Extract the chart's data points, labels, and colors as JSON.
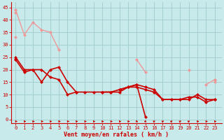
{
  "xlabel": "Vent moyen/en rafales ( km/h )",
  "background_color": "#c8eaea",
  "grid_color": "#a0cccc",
  "x_ticks": [
    0,
    1,
    2,
    3,
    4,
    5,
    6,
    7,
    8,
    9,
    10,
    11,
    12,
    13,
    14,
    15,
    16,
    17,
    18,
    19,
    20,
    21,
    22,
    23
  ],
  "y_ticks": [
    0,
    5,
    10,
    15,
    20,
    25,
    30,
    35,
    40,
    45
  ],
  "ylim": [
    -1.5,
    47
  ],
  "xlim": [
    -0.5,
    23.8
  ],
  "lines_pink": [
    {
      "x": [
        0,
        1,
        2,
        3,
        4,
        5,
        6,
        7,
        8,
        9,
        10,
        11,
        12,
        13,
        14,
        15,
        16,
        17,
        18,
        19,
        20,
        21,
        22,
        23
      ],
      "y": [
        44,
        null,
        null,
        null,
        null,
        null,
        null,
        null,
        null,
        null,
        null,
        null,
        null,
        null,
        null,
        null,
        null,
        null,
        null,
        null,
        null,
        null,
        null,
        16
      ]
    },
    {
      "x": [
        0,
        1,
        2,
        3,
        4,
        5,
        6,
        7,
        8,
        9,
        10,
        11,
        12,
        13,
        14,
        15,
        16,
        17,
        18,
        19,
        20,
        21,
        22,
        23
      ],
      "y": [
        43,
        null,
        null,
        null,
        null,
        null,
        null,
        null,
        null,
        null,
        null,
        null,
        null,
        null,
        null,
        null,
        null,
        null,
        null,
        null,
        null,
        null,
        null,
        15
      ]
    },
    {
      "x": [
        0,
        1,
        2,
        3,
        4,
        5,
        6,
        7,
        8,
        9,
        10,
        11,
        12,
        13,
        14,
        15,
        16,
        17,
        18,
        19,
        20,
        21,
        22,
        23
      ],
      "y": [
        44,
        34,
        39,
        36,
        35,
        28,
        null,
        null,
        null,
        null,
        null,
        null,
        null,
        null,
        24,
        19,
        null,
        null,
        null,
        null,
        20,
        null,
        14,
        16
      ]
    },
    {
      "x": [
        0,
        1,
        2,
        3,
        4,
        5,
        6,
        7,
        8,
        9,
        10,
        11,
        12,
        13,
        14,
        15,
        16,
        17,
        18,
        19,
        20,
        21,
        22,
        23
      ],
      "y": [
        33,
        null,
        null,
        null,
        null,
        null,
        null,
        null,
        null,
        null,
        null,
        null,
        null,
        null,
        null,
        null,
        null,
        null,
        null,
        null,
        null,
        null,
        null,
        null
      ]
    }
  ],
  "lines_red": [
    {
      "x": [
        0,
        1,
        2,
        3,
        4,
        5,
        6,
        7,
        8,
        9,
        10,
        11,
        12,
        13,
        14,
        15,
        16,
        17,
        18,
        19,
        20,
        21,
        22,
        23
      ],
      "y": [
        25,
        20,
        20,
        20,
        17,
        16,
        10,
        11,
        11,
        11,
        11,
        11,
        12,
        13,
        13,
        12,
        11,
        8,
        8,
        8,
        8,
        10,
        8,
        8
      ]
    },
    {
      "x": [
        0,
        1,
        2,
        3,
        4,
        5,
        6,
        7,
        8,
        9,
        10,
        11,
        12,
        13,
        14,
        15,
        16,
        17,
        18,
        19,
        20,
        21,
        22,
        23
      ],
      "y": [
        24,
        19,
        20,
        15,
        20,
        21,
        15,
        11,
        null,
        null,
        11,
        11,
        11,
        13,
        14,
        13,
        12,
        8,
        8,
        8,
        9,
        9,
        7,
        8
      ]
    },
    {
      "x": [
        0,
        1,
        2,
        3,
        4,
        5,
        6,
        7,
        8,
        9,
        10,
        11,
        12,
        13,
        14,
        15,
        16,
        17,
        18,
        19,
        20,
        21,
        22,
        23
      ],
      "y": [
        24,
        null,
        null,
        null,
        null,
        null,
        null,
        null,
        null,
        null,
        null,
        null,
        null,
        null,
        null,
        null,
        null,
        null,
        null,
        null,
        null,
        null,
        null,
        8
      ]
    },
    {
      "x": [
        0,
        1,
        2,
        3,
        4,
        5,
        6,
        7,
        8,
        9,
        10,
        11,
        12,
        13,
        14,
        15,
        16,
        17,
        18,
        19,
        20,
        21,
        22,
        23
      ],
      "y": [
        null,
        null,
        null,
        null,
        null,
        null,
        null,
        null,
        null,
        null,
        null,
        null,
        12,
        13,
        14,
        1,
        null,
        null,
        null,
        null,
        null,
        null,
        null,
        null
      ]
    }
  ],
  "pink_color": "#ee9999",
  "red_color": "#cc0000",
  "marker": "D",
  "marker_size": 2.5,
  "pink_lw": 1.0,
  "red_lw": 1.2,
  "arrow_symbols": [
    "r",
    "r",
    "r",
    "r",
    "r",
    "r",
    "r",
    "r",
    "r",
    "r",
    "r",
    "r",
    "r",
    "r",
    "d",
    "d",
    "u",
    "u",
    "u",
    "u",
    "u",
    "r",
    "r",
    "r"
  ],
  "xlabel_fontsize": 6,
  "tick_fontsize": 5
}
